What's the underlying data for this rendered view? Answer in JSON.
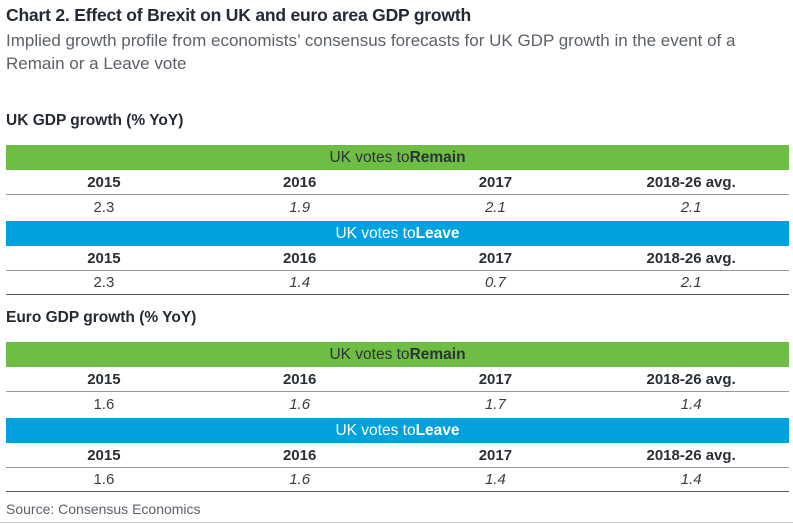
{
  "title": "Chart 2. Effect of Brexit on UK and euro area GDP growth",
  "subtitle": "Implied growth profile from economists’ consensus forecasts for UK GDP growth in the event of a Remain or a Leave vote",
  "source": "Source: Consensus Economics",
  "colors": {
    "remain_green": "#6ebe45",
    "leave_blue": "#00a1df"
  },
  "tables": [
    {
      "heading": "UK GDP growth (% YoY)",
      "sections": [
        {
          "label_prefix": "UK votes to ",
          "label_bold": "Remain",
          "years": [
            "2015",
            "2016",
            "2017",
            "2018-26 avg."
          ],
          "values": [
            "2.3",
            "1.9",
            "2.1",
            "2.1"
          ]
        },
        {
          "label_prefix": "UK votes to ",
          "label_bold": "Leave",
          "years": [
            "2015",
            "2016",
            "2017",
            "2018-26 avg."
          ],
          "values": [
            "2.3",
            "1.4",
            "0.7",
            "2.1"
          ]
        }
      ]
    },
    {
      "heading": "Euro GDP growth (% YoY)",
      "sections": [
        {
          "label_prefix": "UK votes to ",
          "label_bold": "Remain",
          "years": [
            "2015",
            "2016",
            "2017",
            "2018-26 avg."
          ],
          "values": [
            "1.6",
            "1.6",
            "1.7",
            "1.4"
          ]
        },
        {
          "label_prefix": "UK votes to ",
          "label_bold": "Leave",
          "years": [
            "2015",
            "2016",
            "2017",
            "2018-26 avg."
          ],
          "values": [
            "1.6",
            "1.6",
            "1.4",
            "1.4"
          ]
        }
      ]
    }
  ],
  "chart_data": {
    "type": "table",
    "title": "Chart 2. Effect of Brexit on UK and euro area GDP growth",
    "subtitle": "Implied growth profile from economists’ consensus forecasts for UK GDP growth in the event of a Remain or a Leave vote",
    "source": "Source: Consensus Economics",
    "columns": [
      "2015",
      "2016",
      "2017",
      "2018-26 avg."
    ],
    "tables": [
      {
        "name": "UK GDP growth (% YoY)",
        "series": [
          {
            "name": "UK votes to Remain",
            "values": [
              2.3,
              1.9,
              2.1,
              2.1
            ]
          },
          {
            "name": "UK votes to Leave",
            "values": [
              2.3,
              1.4,
              0.7,
              2.1
            ]
          }
        ]
      },
      {
        "name": "Euro GDP growth (% YoY)",
        "series": [
          {
            "name": "UK votes to Remain",
            "values": [
              1.6,
              1.6,
              1.7,
              1.4
            ]
          },
          {
            "name": "UK votes to Leave",
            "values": [
              1.6,
              1.6,
              1.4,
              1.4
            ]
          }
        ]
      }
    ],
    "notes": "2015 values shown upright (actual); 2016, 2017 and 2018-26 avg. values shown in italics (forecasts)"
  }
}
